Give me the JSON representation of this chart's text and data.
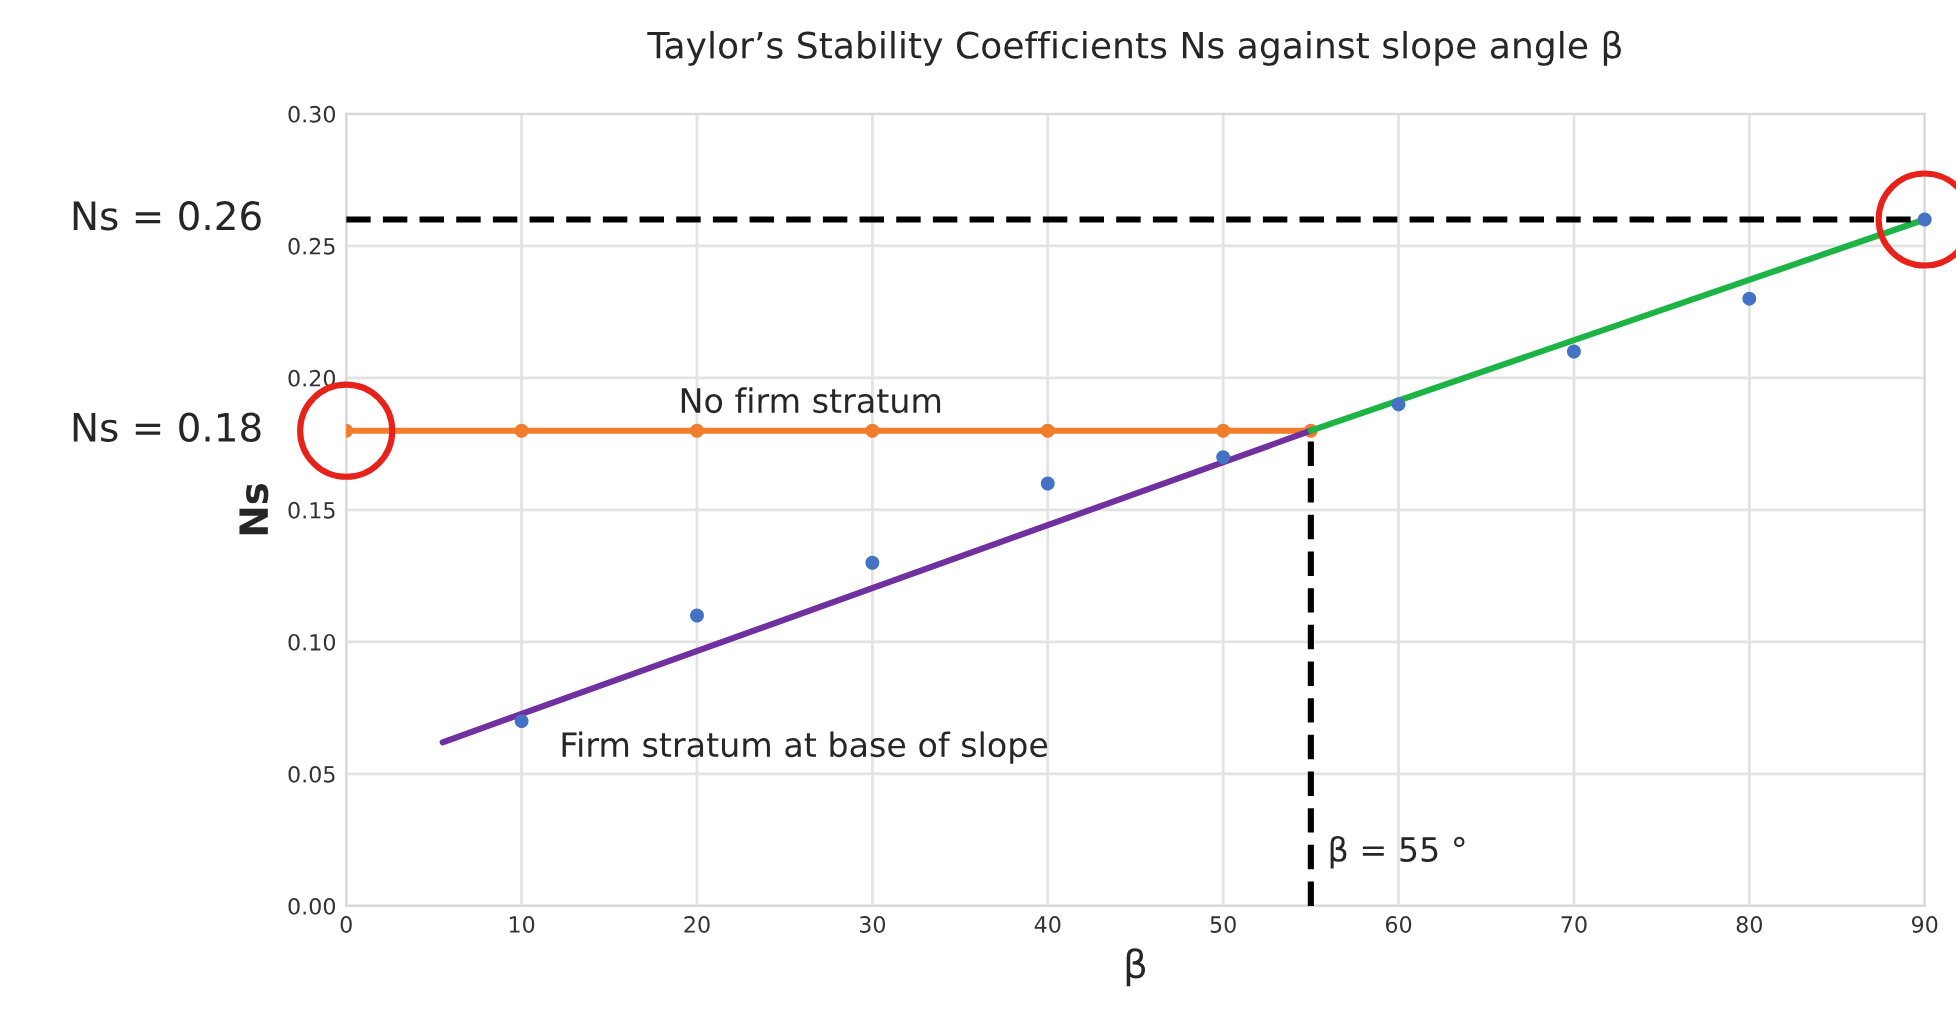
{
  "chart_data": {
    "type": "scatter",
    "title": "Taylor’s Stability Coefficients Ns against slope angle β",
    "xlabel": "β",
    "ylabel": "Ns",
    "xlim": [
      0,
      90
    ],
    "xticks": [
      0,
      10,
      20,
      30,
      40,
      50,
      60,
      70,
      80,
      90
    ],
    "ylim": [
      0,
      0.3
    ],
    "yticks": [
      {
        "value": 0,
        "label": "0.00"
      },
      {
        "value": 0.05,
        "label": "0.05"
      },
      {
        "value": 0.1,
        "label": "0.10"
      },
      {
        "value": 0.15,
        "label": "0.15"
      },
      {
        "value": 0.2,
        "label": "0.20"
      },
      {
        "value": 0.25,
        "label": "0.25"
      },
      {
        "value": 0.3,
        "label": "0.30"
      }
    ],
    "grid": true,
    "legend": false,
    "series": [
      {
        "type": "line",
        "color": "#f07c2c",
        "marker": "circle",
        "x": [
          0,
          10,
          20,
          30,
          40,
          50,
          55
        ],
        "values": [
          0.18,
          0.18,
          0.18,
          0.18,
          0.18,
          0.18,
          0.18
        ]
      },
      {
        "type": "line",
        "color": "#7030a0",
        "marker": "none",
        "x": [
          5.5,
          55
        ],
        "values": [
          0.062,
          0.18
        ]
      },
      {
        "type": "line",
        "color": "#1db446",
        "marker": "none",
        "x": [
          55,
          90
        ],
        "values": [
          0.18,
          0.26
        ]
      },
      {
        "type": "line",
        "color": "#000000",
        "marker": "none",
        "line_style": "dashed",
        "x": [
          0,
          90
        ],
        "values": [
          0.26,
          0.26
        ]
      },
      {
        "type": "line",
        "color": "#000000",
        "marker": "none",
        "line_style": "dashed",
        "x": [
          55,
          55
        ],
        "values": [
          0,
          0.18
        ]
      },
      {
        "color": "#4472c4",
        "marker": "circle",
        "x": [
          10,
          20,
          30,
          40,
          50,
          60,
          70,
          80,
          90
        ],
        "values": [
          0.07,
          0.11,
          0.13,
          0.16,
          0.17,
          0.19,
          0.21,
          0.23,
          0.26
        ]
      },
      {
        "type": "bubble",
        "color": "#e8221b",
        "marker": "circle",
        "x": [
          0,
          90
        ],
        "values": [
          0.18,
          0.26
        ],
        "sizes": [
          1,
          1
        ]
      }
    ],
    "annotations": [
      "Ns = 0.26",
      "Ns = 0.18",
      {
        "text": "No firm stratum",
        "x": 18,
        "y": 0.18
      },
      "Firm stratum at base of slope",
      {
        "text": "β = 55 °",
        "x": 55,
        "y": 0.01
      }
    ]
  }
}
